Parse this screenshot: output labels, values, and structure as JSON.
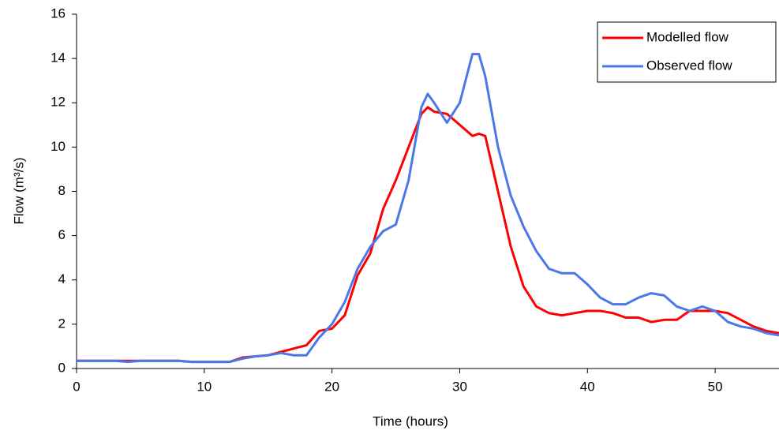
{
  "chart_data": {
    "type": "line",
    "x_label": "Time (hours)",
    "y_label": "Flow (m³/s)",
    "x": [
      0,
      1,
      2,
      3,
      4,
      5,
      6,
      7,
      8,
      9,
      10,
      11,
      12,
      13,
      14,
      15,
      16,
      17,
      18,
      19,
      20,
      21,
      22,
      23,
      24,
      25,
      26,
      27,
      27.5,
      28,
      29,
      30,
      31,
      31.5,
      32,
      33,
      34,
      35,
      36,
      37,
      38,
      39,
      40,
      41,
      42,
      43,
      44,
      45,
      46,
      47,
      48,
      49,
      50,
      51,
      52,
      53,
      54,
      55
    ],
    "series": [
      {
        "name": "Modelled flow",
        "color": "#ff0000",
        "values": [
          0.35,
          0.35,
          0.35,
          0.35,
          0.35,
          0.35,
          0.35,
          0.35,
          0.35,
          0.3,
          0.3,
          0.3,
          0.3,
          0.5,
          0.55,
          0.6,
          0.75,
          0.9,
          1.05,
          1.7,
          1.8,
          2.4,
          4.2,
          5.2,
          7.2,
          8.5,
          10.0,
          11.5,
          11.8,
          11.6,
          11.5,
          11.0,
          10.5,
          10.6,
          10.5,
          8.0,
          5.5,
          3.7,
          2.8,
          2.5,
          2.4,
          2.5,
          2.6,
          2.6,
          2.5,
          2.3,
          2.3,
          2.1,
          2.2,
          2.2,
          2.6,
          2.6,
          2.6,
          2.5,
          2.2,
          1.9,
          1.7,
          1.6
        ]
      },
      {
        "name": "Observed flow",
        "color": "#4a78e8",
        "values": [
          0.35,
          0.35,
          0.35,
          0.35,
          0.3,
          0.35,
          0.35,
          0.35,
          0.35,
          0.3,
          0.3,
          0.3,
          0.3,
          0.45,
          0.55,
          0.6,
          0.7,
          0.6,
          0.6,
          1.4,
          2.0,
          3.0,
          4.5,
          5.5,
          6.2,
          6.5,
          8.5,
          11.8,
          12.4,
          12.0,
          11.1,
          12.0,
          14.2,
          14.2,
          13.2,
          10.0,
          7.8,
          6.4,
          5.3,
          4.5,
          4.3,
          4.3,
          3.8,
          3.2,
          2.9,
          2.9,
          3.2,
          3.4,
          3.3,
          2.8,
          2.6,
          2.8,
          2.6,
          2.1,
          1.9,
          1.8,
          1.6,
          1.5
        ]
      }
    ],
    "xlim": [
      0,
      55
    ],
    "xticks": [
      0,
      10,
      20,
      30,
      40,
      50
    ],
    "ylim": [
      0,
      16
    ],
    "yticks": [
      0,
      2,
      4,
      6,
      8,
      10,
      12,
      14,
      16
    ],
    "grid": false,
    "legend": "upper right"
  }
}
